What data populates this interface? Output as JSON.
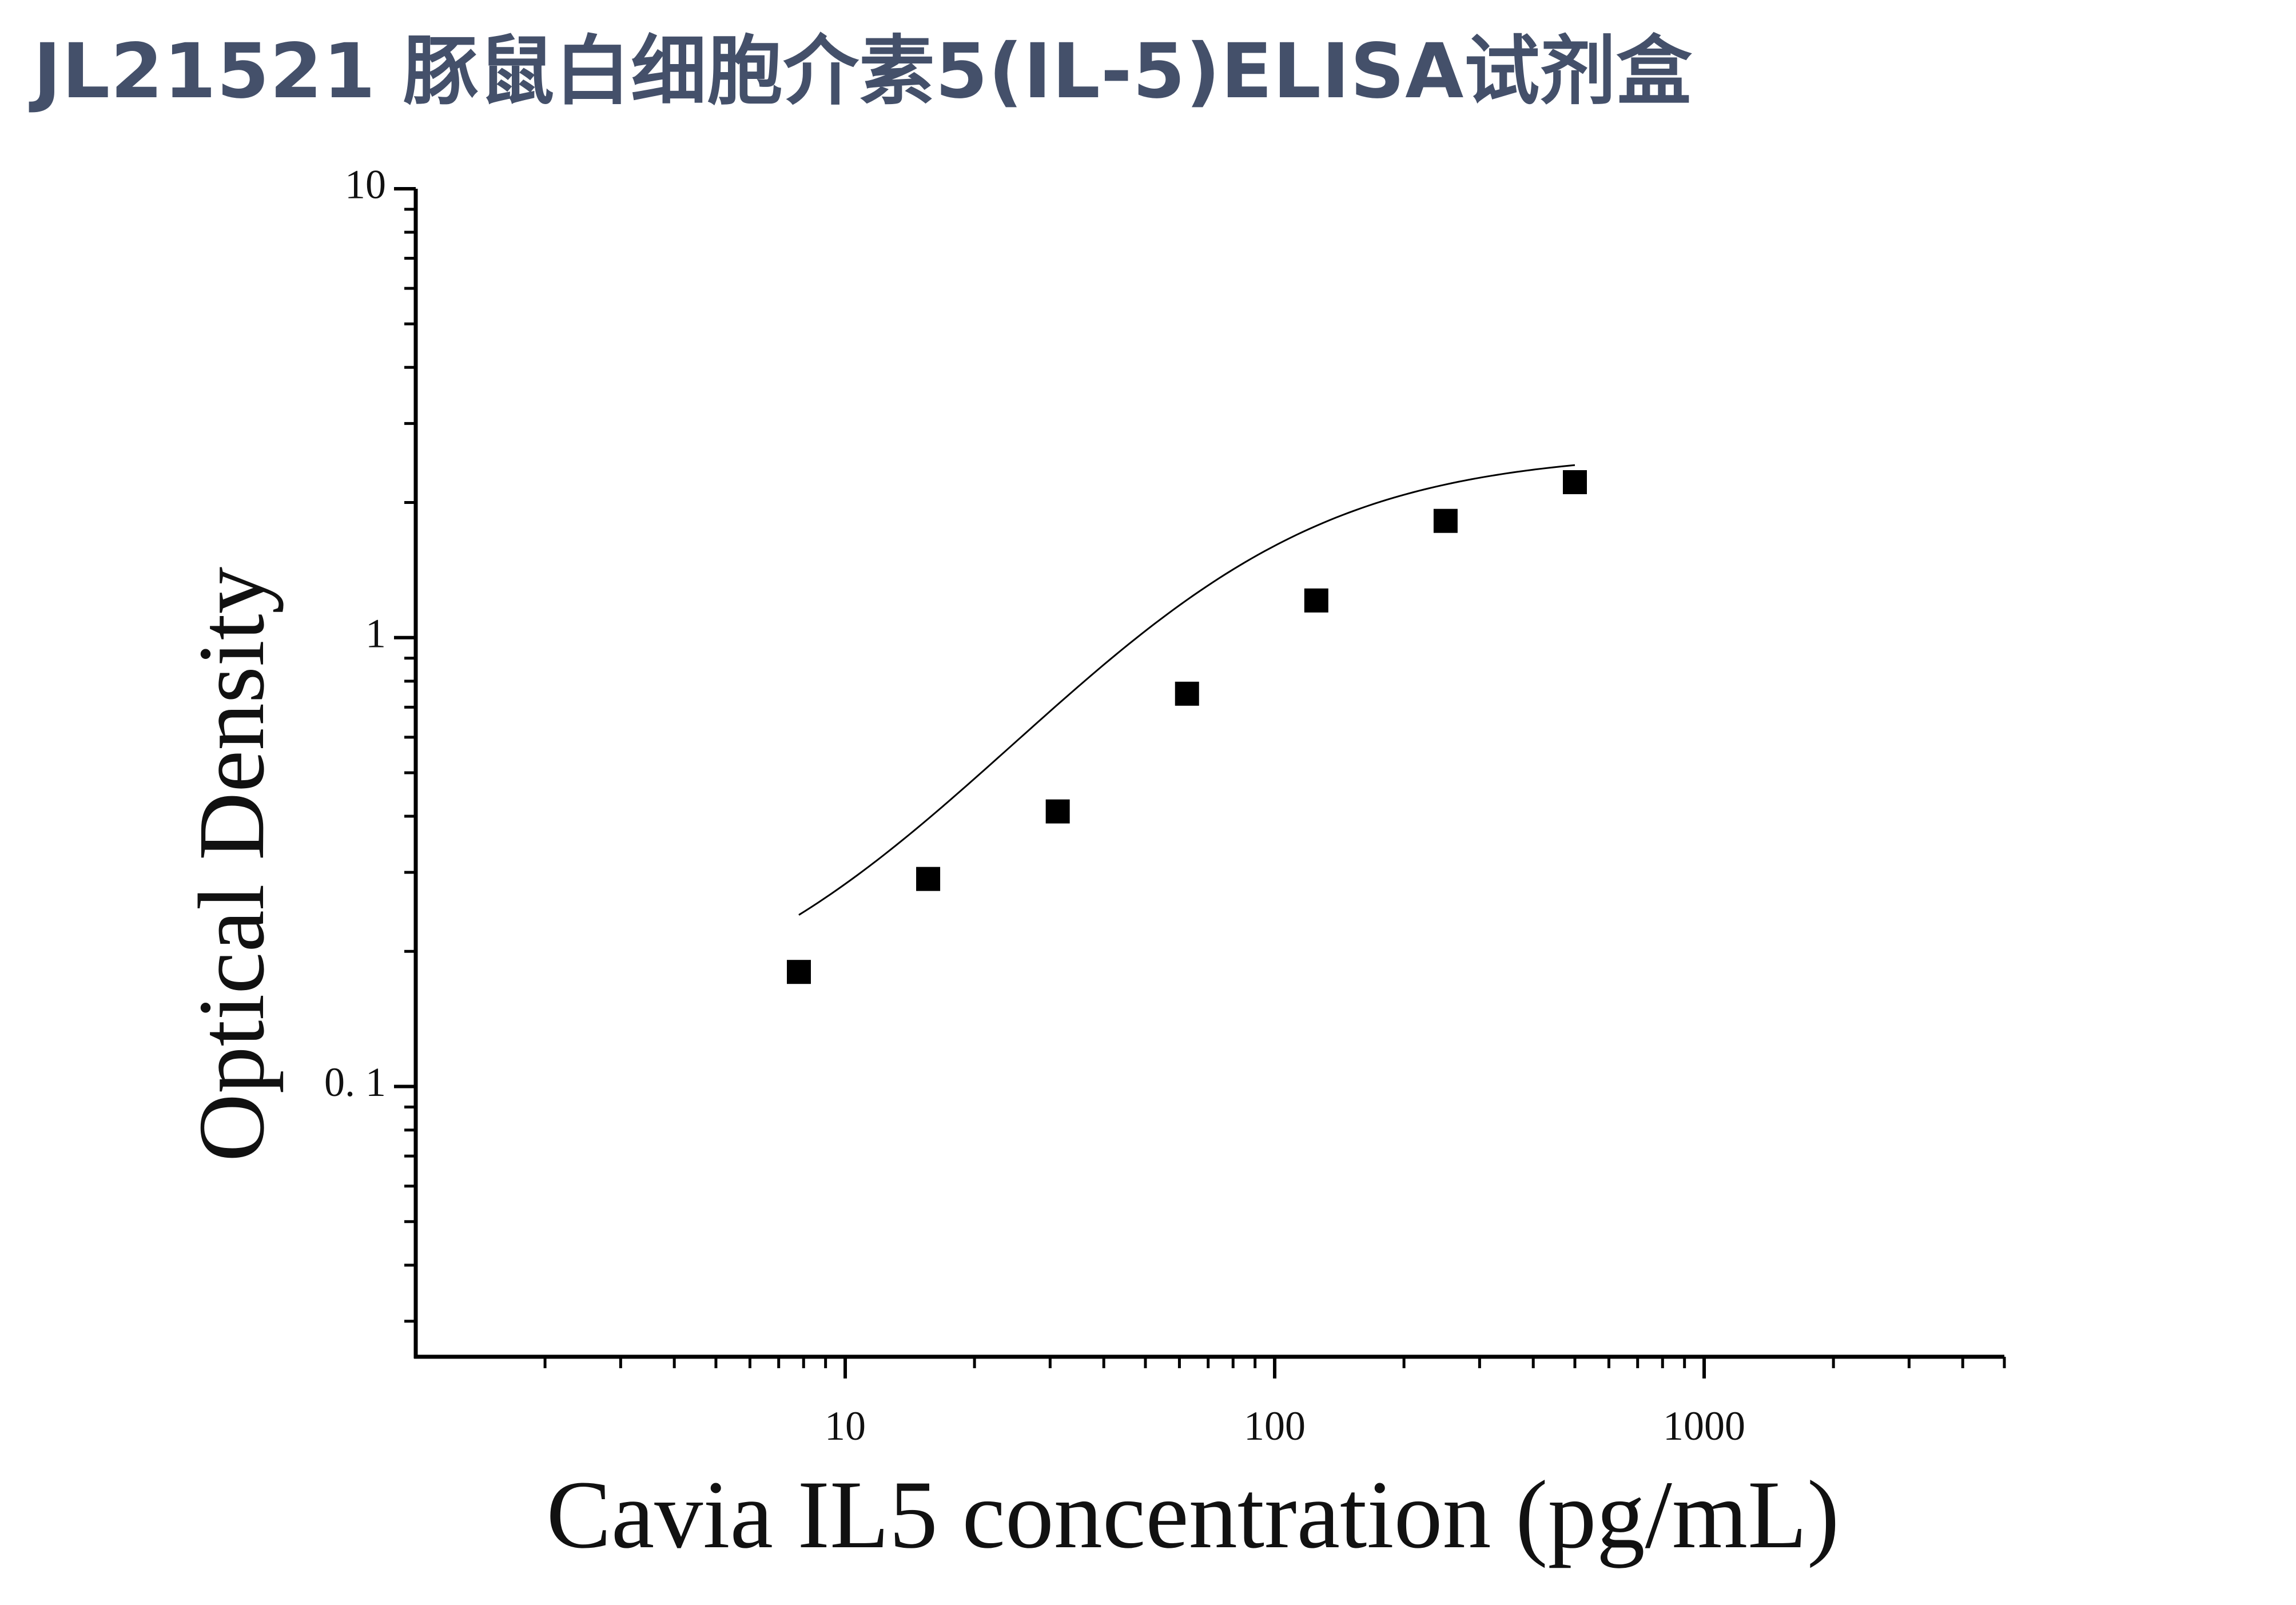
{
  "title": "JL21521 豚鼠白细胞介素5(IL-5)ELISA试剂盒",
  "chart_data": {
    "type": "scatter",
    "x_scale": "log",
    "y_scale": "log",
    "xlabel": "Cavia IL5 concentration (pg/mL)",
    "ylabel": "Optical Density",
    "xlim": [
      1,
      5000
    ],
    "ylim": [
      0.025,
      10
    ],
    "x_tick_labels": [
      "10",
      "100",
      "1000"
    ],
    "y_tick_labels": [
      "0. 1",
      "1",
      "10"
    ],
    "grid": false,
    "legend": "none",
    "series": [
      {
        "marker": "square",
        "color": "#000000",
        "x": [
          7.8,
          15.6,
          31.25,
          62.5,
          125,
          250,
          500
        ],
        "y": [
          0.18,
          0.29,
          0.41,
          0.75,
          1.21,
          1.82,
          2.22
        ]
      }
    ],
    "fit_curve": {
      "type": "4PL",
      "color": "#000000",
      "x_range": [
        7.8,
        500
      ],
      "A": 0.13,
      "B": 1.35,
      "C": 75,
      "D": 2.6
    }
  }
}
